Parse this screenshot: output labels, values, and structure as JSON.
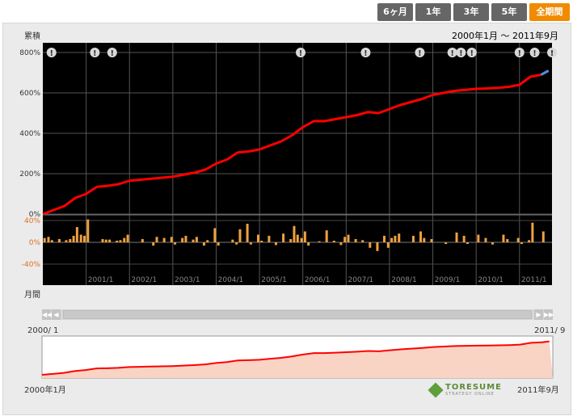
{
  "tabs": [
    {
      "label": "6ヶ月",
      "active": false
    },
    {
      "label": "1年",
      "active": false
    },
    {
      "label": "3年",
      "active": false
    },
    {
      "label": "5年",
      "active": false
    },
    {
      "label": "全期間",
      "active": true
    }
  ],
  "labels": {
    "cumulative": "累積",
    "monthly": "月間",
    "range": "2000年1月 〜 2011年9月",
    "nav_start_top": "2000/ 1",
    "nav_end_top": "2011/ 9",
    "nav_start_bottom": "2000年1月",
    "nav_end_bottom": "2011年9月"
  },
  "logo": {
    "name": "TORESUME",
    "sub": "STRATEGY ONLINE"
  },
  "colors": {
    "line": "#ff0000",
    "bar": "#f0a040",
    "plot_bg": "#000000",
    "navigator_fill": "#f9d4c4",
    "last_segment": "#4f8fe0",
    "accent": "#f08a00"
  },
  "chart_data": {
    "type": "line",
    "cumulative": {
      "ylim": [
        0,
        800
      ],
      "yticks": [
        "800%",
        "600%",
        "400%",
        "200%",
        "0%"
      ],
      "x": [
        2000.0,
        2000.25,
        2000.5,
        2000.75,
        2001.0,
        2001.25,
        2001.5,
        2001.75,
        2002.0,
        2002.25,
        2002.5,
        2002.75,
        2003.0,
        2003.25,
        2003.5,
        2003.75,
        2004.0,
        2004.25,
        2004.5,
        2004.75,
        2005.0,
        2005.25,
        2005.5,
        2005.75,
        2006.0,
        2006.25,
        2006.5,
        2006.75,
        2007.0,
        2007.25,
        2007.5,
        2007.75,
        2008.0,
        2008.25,
        2008.5,
        2008.75,
        2009.0,
        2009.25,
        2009.5,
        2009.75,
        2010.0,
        2010.25,
        2010.5,
        2010.75,
        2011.0,
        2011.25,
        2011.5,
        2011.67
      ],
      "y": [
        0,
        20,
        40,
        80,
        100,
        135,
        140,
        148,
        165,
        170,
        175,
        180,
        185,
        195,
        205,
        220,
        250,
        270,
        305,
        310,
        320,
        340,
        360,
        390,
        430,
        460,
        460,
        470,
        480,
        490,
        505,
        500,
        520,
        540,
        555,
        570,
        590,
        600,
        610,
        615,
        620,
        622,
        625,
        630,
        640,
        680,
        690,
        710
      ]
    },
    "monthly": {
      "ylim": [
        -50,
        50
      ],
      "yticks": [
        "40%",
        "0%",
        "-40%"
      ],
      "x": [
        2000.04,
        2000.13,
        2000.21,
        2000.38,
        2000.54,
        2000.63,
        2000.71,
        2000.79,
        2000.88,
        2000.96,
        2001.04,
        2001.38,
        2001.46,
        2001.54,
        2001.71,
        2001.79,
        2001.88,
        2001.96,
        2002.3,
        2002.55,
        2002.63,
        2002.8,
        2002.97,
        2003.05,
        2003.22,
        2003.3,
        2003.47,
        2003.55,
        2003.72,
        2003.8,
        2003.97,
        2004.05,
        2004.38,
        2004.47,
        2004.55,
        2004.72,
        2004.8,
        2004.97,
        2005.05,
        2005.22,
        2005.38,
        2005.55,
        2005.72,
        2005.8,
        2005.88,
        2005.97,
        2006.05,
        2006.13,
        2006.38,
        2006.55,
        2006.72,
        2006.88,
        2006.97,
        2007.05,
        2007.22,
        2007.38,
        2007.55,
        2007.72,
        2007.88,
        2007.97,
        2008.05,
        2008.13,
        2008.22,
        2008.55,
        2008.72,
        2008.8,
        2008.97,
        2009.3,
        2009.55,
        2009.72,
        2009.8,
        2010.05,
        2010.22,
        2010.38,
        2010.63,
        2010.72,
        2010.97,
        2011.05,
        2011.22,
        2011.3,
        2011.55
      ],
      "y": [
        8,
        10,
        4,
        6,
        4,
        6,
        12,
        28,
        14,
        12,
        42,
        6,
        5,
        5,
        3,
        4,
        8,
        14,
        6,
        -6,
        10,
        8,
        10,
        -4,
        8,
        12,
        5,
        10,
        -6,
        4,
        26,
        -6,
        5,
        -4,
        24,
        34,
        -4,
        14,
        3,
        12,
        -5,
        16,
        6,
        30,
        14,
        8,
        20,
        -6,
        2,
        22,
        3,
        -5,
        10,
        14,
        6,
        4,
        -10,
        -16,
        12,
        -10,
        8,
        12,
        16,
        12,
        20,
        8,
        6,
        -3,
        18,
        12,
        -3,
        14,
        8,
        -4,
        14,
        6,
        8,
        -3,
        4,
        36,
        20
      ]
    },
    "xtick_labels": [
      "2001/1",
      "2002/1",
      "2003/1",
      "2004/1",
      "2005/1",
      "2006/1",
      "2007/1",
      "2008/1",
      "2009/1",
      "2010/1",
      "2011/1"
    ],
    "xrange": [
      2000.0,
      2011.75
    ],
    "event_markers": {
      "symbol": "!",
      "x": [
        2000.2,
        2001.2,
        2001.6,
        2005.95,
        2007.45,
        2008.7,
        2009.45,
        2009.65,
        2009.9,
        2011.0,
        2011.35,
        2011.75
      ]
    }
  }
}
